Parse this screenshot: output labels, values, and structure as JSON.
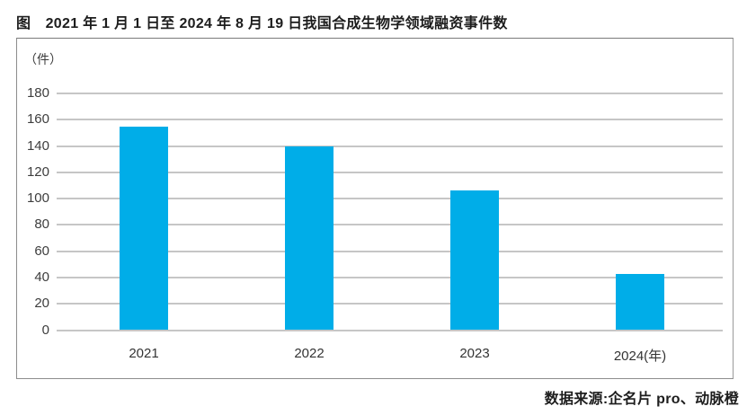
{
  "title": "图　2021 年 1 月 1 日至 2024 年 8 月 19 日我国合成生物学领域融资事件数",
  "unit_label": "（件）",
  "source": "数据来源:企名片 pro、动脉橙",
  "colors": {
    "bar": "#00ADE8",
    "grid": "#c6c6c6",
    "frame": "#8d8d8d",
    "text": "#1d1d1d"
  },
  "chart_data": {
    "type": "bar",
    "categories": [
      "2021",
      "2022",
      "2023",
      "2024(年)"
    ],
    "values": [
      155,
      140,
      106,
      43
    ],
    "title": "2021 年 1 月 1 日至 2024 年 8 月 19 日我国合成生物学领域融资事件数",
    "xlabel": "年",
    "ylabel": "件",
    "ylim": [
      0,
      180
    ],
    "ytick_step": 20,
    "grid": true,
    "legend": false,
    "bar_color": "#00ADE8"
  }
}
